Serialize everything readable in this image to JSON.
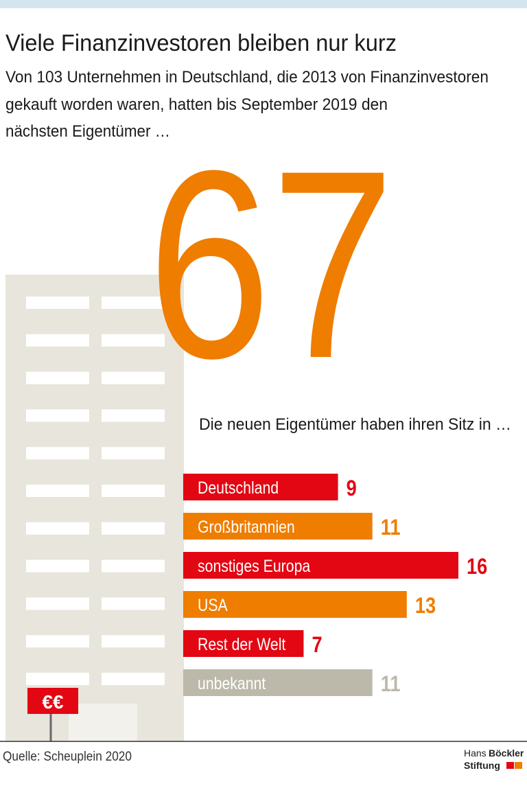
{
  "chart_data": {
    "type": "bar",
    "title": "Viele Finanzinvestoren bleiben nur kurz",
    "subtitle": [
      "Von 103 Unternehmen in Deutschland, die 2013 von Finanzinvestoren",
      "gekauft worden waren, hatten bis September 2019 den",
      "nächsten Eigentümer …"
    ],
    "headline_number": 67,
    "subheading": "Die neuen Eigentümer haben ihren Sitz in …",
    "categories": [
      "Deutschland",
      "Großbritannien",
      "sonstiges Europa",
      "USA",
      "Rest der Welt",
      "unbekannt"
    ],
    "values": [
      9,
      11,
      16,
      13,
      7,
      11
    ],
    "colors": [
      "#e30613",
      "#ef7d00",
      "#e30613",
      "#ef7d00",
      "#e30613",
      "#bcb9aa"
    ],
    "sign": "€€",
    "source": "Quelle: Scheuplein 2020",
    "logo": [
      "Hans",
      "Böckler",
      "Stiftung"
    ]
  }
}
